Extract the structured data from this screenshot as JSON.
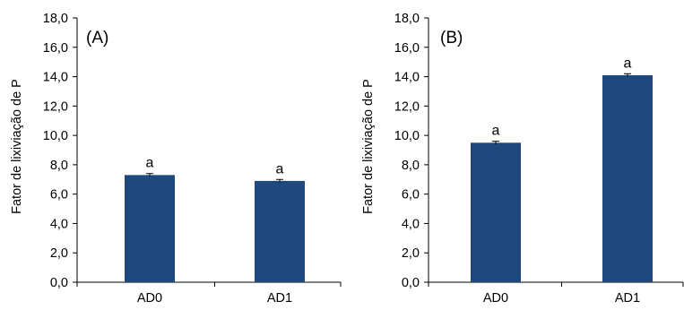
{
  "chart_data": [
    {
      "type": "bar",
      "panel_label": "(A)",
      "title": "",
      "xlabel": "",
      "ylabel": "Fator de lixiviação de P",
      "categories": [
        "AD0",
        "AD1"
      ],
      "values": [
        7.3,
        6.9
      ],
      "error": [
        0.1,
        0.1
      ],
      "annotations": [
        "a",
        "a"
      ],
      "ylim": [
        0,
        18
      ],
      "yticks": [
        "0,0",
        "2,0",
        "4,0",
        "6,0",
        "8,0",
        "10,0",
        "12,0",
        "14,0",
        "16,0",
        "18,0"
      ],
      "bar_color": "#1f497d",
      "grid": false,
      "legend": "none"
    },
    {
      "type": "bar",
      "panel_label": "(B)",
      "title": "",
      "xlabel": "",
      "ylabel": "Fator de lixiviação de P",
      "categories": [
        "AD0",
        "AD1"
      ],
      "values": [
        9.5,
        14.1
      ],
      "error": [
        0.1,
        0.1
      ],
      "annotations": [
        "a",
        "a"
      ],
      "ylim": [
        0,
        18
      ],
      "yticks": [
        "0,0",
        "2,0",
        "4,0",
        "6,0",
        "8,0",
        "10,0",
        "12,0",
        "14,0",
        "16,0",
        "18,0"
      ],
      "bar_color": "#1f497d",
      "grid": false,
      "legend": "none"
    }
  ]
}
